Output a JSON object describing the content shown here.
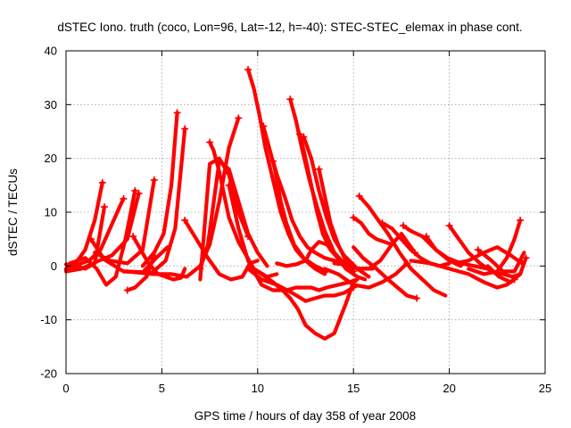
{
  "chart_data": {
    "type": "line",
    "title": "dSTEC Iono. truth (coco, Lon=96, Lat=-12, h=-40): STEC-STEC_elemax in phase cont.",
    "xlabel": "GPS time / hours of day 358 of year 2008",
    "ylabel": "dSTEC  / TECUs",
    "xlim": [
      0,
      25
    ],
    "ylim": [
      -20,
      40
    ],
    "xticks": [
      "0",
      "5",
      "10",
      "15",
      "20",
      "25"
    ],
    "yticks": [
      "-20",
      "-10",
      "0",
      "10",
      "20",
      "30",
      "40"
    ],
    "grid": true,
    "color": "#ff0000",
    "series": [
      {
        "x": [
          0.0,
          0.5,
          1.0,
          1.5,
          1.9
        ],
        "y": [
          -0.5,
          0.5,
          3.0,
          8.5,
          15.5
        ]
      },
      {
        "x": [
          0.0,
          0.8,
          1.2,
          1.8,
          2.3,
          2.8,
          3.0
        ],
        "y": [
          -0.8,
          0.5,
          1.0,
          3.0,
          7.0,
          11.0,
          12.5
        ]
      },
      {
        "x": [
          0.0,
          0.4,
          1.0,
          1.5,
          2.0
        ],
        "y": [
          0.3,
          0.1,
          -0.5,
          0.5,
          11.0
        ]
      },
      {
        "x": [
          0.2,
          1.0,
          1.6,
          2.1,
          2.6,
          3.1,
          3.6
        ],
        "y": [
          0.5,
          1.5,
          -0.5,
          -3.5,
          -2.0,
          5.0,
          14.0
        ]
      },
      {
        "x": [
          0.0,
          0.8,
          1.6,
          2.4,
          3.2,
          3.8
        ],
        "y": [
          -1.0,
          -0.5,
          0.8,
          2.0,
          5.0,
          13.5
        ]
      },
      {
        "x": [
          1.5,
          2.3,
          3.2,
          4.0,
          4.6
        ],
        "y": [
          2.5,
          1.0,
          0.5,
          3.0,
          16.0
        ]
      },
      {
        "x": [
          1.3,
          2.0,
          3.0,
          4.0,
          4.7,
          5.3
        ],
        "y": [
          5.0,
          1.2,
          -1.0,
          -1.2,
          1.5,
          3.5
        ]
      },
      {
        "x": [
          3.2,
          3.6,
          4.2,
          4.6
        ],
        "y": [
          -4.5,
          -4.0,
          -2.0,
          2.0
        ]
      },
      {
        "x": [
          3.5,
          4.3,
          4.8,
          5.2,
          5.6,
          6.0,
          6.2
        ],
        "y": [
          5.5,
          0.5,
          -1.5,
          -2.0,
          -2.5,
          -2.2,
          -0.5
        ]
      },
      {
        "x": [
          4.0,
          4.6,
          5.1,
          5.5,
          5.8
        ],
        "y": [
          0.0,
          2.5,
          6.0,
          15.0,
          28.5
        ]
      },
      {
        "x": [
          3.0,
          4.5,
          5.2,
          5.7,
          6.2
        ],
        "y": [
          -1.0,
          -1.2,
          1.0,
          7.0,
          25.5
        ]
      },
      {
        "x": [
          3.2,
          4.5,
          5.5,
          6.3,
          7.0,
          7.5,
          8.0,
          8.5,
          9.0
        ],
        "y": [
          -1.0,
          -1.5,
          -1.5,
          -2.0,
          0.0,
          4.0,
          12.0,
          22.0,
          27.5
        ]
      },
      {
        "x": [
          6.2,
          6.8,
          7.4,
          8.0,
          8.6,
          9.2,
          9.6,
          10.0
        ],
        "y": [
          8.5,
          5.0,
          1.5,
          -1.5,
          -2.5,
          -2.0,
          0.5,
          1.0
        ]
      },
      {
        "x": [
          7.0,
          7.5,
          8.0,
          8.5,
          9.0,
          9.5
        ],
        "y": [
          -2.5,
          19.0,
          20.0,
          17.0,
          10.0,
          5.5
        ]
      },
      {
        "x": [
          7.0,
          7.4,
          8.0,
          8.5,
          9.0,
          9.5,
          10.0,
          10.5
        ],
        "y": [
          -0.5,
          4.0,
          19.5,
          18.0,
          12.0,
          6.0,
          2.5,
          0.0
        ]
      },
      {
        "x": [
          7.5,
          7.7,
          8.0,
          8.5,
          9.0,
          9.8,
          10.5,
          11.0
        ],
        "y": [
          23.0,
          21.5,
          17.5,
          9.0,
          4.5,
          -0.5,
          -2.0,
          -1.5
        ]
      },
      {
        "x": [
          8.5,
          9.0,
          9.5,
          10.2,
          10.8,
          11.5,
          12.0,
          12.8,
          13.2,
          13.6,
          14.2,
          14.8,
          15.2
        ],
        "y": [
          15.0,
          7.0,
          1.0,
          -3.5,
          -4.5,
          -4.5,
          -4.0,
          -4.0,
          -4.5,
          -4.0,
          -3.5,
          -3.0,
          -2.5
        ]
      },
      {
        "x": [
          9.5,
          10.2,
          11.0,
          11.8,
          12.5,
          13.0,
          13.5,
          14.0,
          14.5,
          15.0
        ],
        "y": [
          -0.5,
          -2.5,
          -3.5,
          -5.0,
          -6.5,
          -6.0,
          -5.5,
          -5.5,
          -5.0,
          -4.0
        ]
      },
      {
        "x": [
          9.5,
          10.0,
          10.8,
          11.3,
          11.7,
          12.1,
          12.5,
          13.0,
          13.5,
          14.0,
          14.6,
          15.0
        ],
        "y": [
          -0.5,
          -1.0,
          -3.0,
          -4.5,
          -6.0,
          -8.0,
          -11.0,
          -12.5,
          -13.5,
          -12.5,
          -7.0,
          -3.0
        ]
      },
      {
        "x": [
          9.5,
          9.8,
          10.1,
          10.4,
          10.8,
          11.2,
          11.6,
          12.0,
          12.5,
          13.0,
          13.5
        ],
        "y": [
          36.5,
          33.0,
          28.0,
          22.0,
          16.0,
          10.0,
          6.0,
          3.0,
          1.0,
          -0.5,
          -1.5
        ]
      },
      {
        "x": [
          10.3,
          10.6,
          10.9,
          11.2,
          11.5,
          11.9,
          12.4,
          13.0,
          13.6
        ],
        "y": [
          26.0,
          22.0,
          18.0,
          12.0,
          8.0,
          4.0,
          1.5,
          0.0,
          -1.0
        ]
      },
      {
        "x": [
          10.8,
          11.0,
          11.4,
          11.8,
          12.2,
          12.6,
          13.0,
          13.5,
          14.0,
          14.5
        ],
        "y": [
          19.5,
          17.0,
          13.0,
          8.5,
          5.5,
          3.5,
          2.5,
          1.5,
          1.0,
          0.5
        ]
      },
      {
        "x": [
          11.0,
          11.5,
          12.0,
          12.5,
          12.8,
          13.2,
          13.6,
          14.0,
          14.5,
          15.0
        ],
        "y": [
          0.5,
          0.0,
          0.3,
          1.0,
          3.0,
          4.5,
          4.0,
          2.5,
          0.5,
          -1.0
        ]
      },
      {
        "x": [
          12.2,
          12.5,
          12.8,
          13.1,
          13.4,
          13.8,
          14.3,
          14.8,
          15.3,
          16.0
        ],
        "y": [
          24.5,
          20.0,
          15.0,
          10.0,
          6.0,
          3.0,
          1.0,
          0.0,
          -0.5,
          -0.5
        ]
      },
      {
        "x": [
          11.7,
          12.0,
          12.3,
          12.7,
          13.1,
          13.5,
          14.0,
          14.6,
          15.2,
          15.6
        ],
        "y": [
          31.0,
          27.0,
          22.0,
          16.0,
          11.0,
          6.5,
          2.5,
          -0.5,
          -2.0,
          -2.5
        ]
      },
      {
        "x": [
          12.4,
          12.8,
          13.2,
          13.6,
          14.0,
          14.5,
          15.2,
          15.8
        ],
        "y": [
          24.0,
          20.0,
          14.0,
          9.0,
          5.0,
          2.0,
          -0.5,
          -2.0
        ]
      },
      {
        "x": [
          13.2,
          13.5,
          13.8,
          14.2,
          14.6,
          15.0
        ],
        "y": [
          18.0,
          13.0,
          8.0,
          4.0,
          1.0,
          -1.0
        ]
      },
      {
        "x": [
          13.5,
          14.2,
          15.0,
          15.8,
          16.5,
          17.2,
          17.8
        ],
        "y": [
          -0.5,
          -1.5,
          -3.5,
          -4.0,
          -3.0,
          -1.5,
          0.5
        ]
      },
      {
        "x": [
          14.0,
          14.5,
          15.2,
          15.8,
          16.4,
          17.0,
          17.5,
          18.2
        ],
        "y": [
          0.5,
          0.3,
          -0.5,
          -0.5,
          1.0,
          4.0,
          6.0,
          2.5
        ]
      },
      {
        "x": [
          15.0,
          15.4,
          15.8,
          16.2,
          16.6,
          17.0
        ],
        "y": [
          9.0,
          8.0,
          6.0,
          5.0,
          4.5,
          4.0
        ]
      },
      {
        "x": [
          15.3,
          15.8,
          16.3,
          16.8,
          17.4,
          18.0,
          18.6,
          19.2,
          19.8
        ],
        "y": [
          13.0,
          11.0,
          8.5,
          6.0,
          2.5,
          -0.5,
          -2.5,
          -4.5,
          -5.5
        ]
      },
      {
        "x": [
          15.0,
          15.5,
          16.2,
          16.8,
          17.3,
          17.8,
          18.3
        ],
        "y": [
          3.5,
          1.5,
          -0.5,
          -2.5,
          -4.0,
          -5.5,
          -6.0
        ]
      },
      {
        "x": [
          16.5,
          17.0,
          17.5,
          18.0,
          18.5,
          19.0,
          19.5,
          20.0
        ],
        "y": [
          8.0,
          7.0,
          5.0,
          3.0,
          1.5,
          0.5,
          0.0,
          0.5
        ]
      },
      {
        "x": [
          17.6,
          18.0,
          18.6,
          19.3,
          20.0,
          20.6
        ],
        "y": [
          7.5,
          6.5,
          5.5,
          3.0,
          1.0,
          0.0
        ]
      },
      {
        "x": [
          18.8,
          19.3,
          19.9,
          20.6,
          21.3,
          22.0
        ],
        "y": [
          5.5,
          3.0,
          1.5,
          0.5,
          0.0,
          -0.5
        ]
      },
      {
        "x": [
          20.0,
          20.5,
          21.0,
          21.6,
          22.2,
          22.8,
          23.3,
          23.7
        ],
        "y": [
          7.5,
          5.0,
          2.5,
          0.5,
          -1.0,
          -1.5,
          -2.0,
          -1.5
        ]
      },
      {
        "x": [
          20.3,
          21.0,
          21.8,
          22.5,
          23.2,
          23.8
        ],
        "y": [
          0.5,
          1.0,
          2.5,
          3.5,
          2.0,
          0.5
        ]
      },
      {
        "x": [
          18.0,
          19.0,
          20.0,
          21.0,
          21.8,
          22.5,
          23.0,
          23.4
        ],
        "y": [
          1.0,
          0.5,
          -0.5,
          -1.5,
          -3.0,
          -4.0,
          -3.5,
          -2.5
        ]
      },
      {
        "x": [
          21.0,
          21.8,
          22.5,
          23.0,
          23.4,
          23.7
        ],
        "y": [
          -0.5,
          -1.5,
          -1.0,
          1.5,
          5.0,
          8.5
        ]
      },
      {
        "x": [
          21.5,
          22.2,
          22.8,
          23.4,
          23.9
        ],
        "y": [
          3.0,
          1.0,
          -1.0,
          -1.0,
          2.5
        ]
      },
      {
        "x": [
          22.0,
          22.6,
          23.2,
          23.7,
          24.0
        ],
        "y": [
          0.0,
          -2.0,
          -3.0,
          -1.5,
          1.5
        ]
      }
    ]
  }
}
